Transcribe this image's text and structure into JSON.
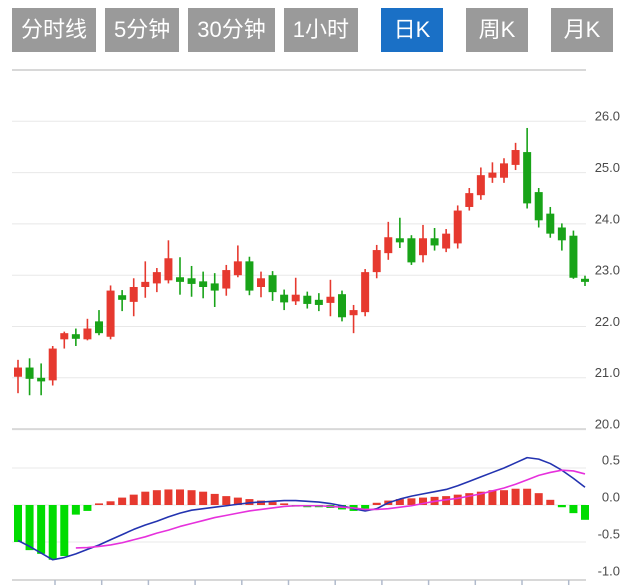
{
  "toolbar": {
    "buttons": [
      {
        "label": "分时线",
        "active": false
      },
      {
        "label": "5分钟",
        "active": false
      },
      {
        "label": "30分钟",
        "active": false
      },
      {
        "label": "1小时",
        "active": false
      },
      {
        "label": "日K",
        "active": true
      },
      {
        "label": "周K",
        "active": false
      },
      {
        "label": "月K",
        "active": false
      }
    ]
  },
  "colors": {
    "button_gray": "#9a9a9a",
    "button_active_blue": "#1a70c6",
    "up_red": "#e6392f",
    "down_green": "#18a318",
    "hist_green": "#00dc00",
    "dif_blue": "#2333b0",
    "dea_magenta": "#e631dc",
    "grid_light": "#e8e8e8",
    "grid_dark": "#d8d8d8",
    "axis_line": "#cccccc",
    "tick": "#b0bacc",
    "label_text": "#4a4a4a"
  },
  "chart_data": {
    "type": "candlestick",
    "color_convention": "red = up, green = down (Chinese market style)",
    "candle_format": "[open, high, low, close]",
    "price_panel": {
      "ylim": [
        20.0,
        27.0
      ],
      "grid_step": 1.0,
      "axis_labels": [
        "26.0",
        "25.0",
        "24.0",
        "23.0",
        "22.0",
        "21.0",
        "20.0"
      ],
      "candles": [
        [
          21.02,
          21.35,
          20.7,
          21.2
        ],
        [
          21.2,
          21.38,
          20.66,
          20.98
        ],
        [
          21.0,
          21.28,
          20.66,
          20.93
        ],
        [
          20.95,
          21.62,
          20.85,
          21.57
        ],
        [
          21.75,
          21.9,
          21.57,
          21.87
        ],
        [
          21.85,
          21.96,
          21.62,
          21.76
        ],
        [
          21.75,
          22.15,
          21.73,
          21.96
        ],
        [
          22.1,
          22.32,
          21.83,
          21.87
        ],
        [
          21.8,
          22.8,
          21.75,
          22.7
        ],
        [
          22.61,
          22.71,
          22.3,
          22.52
        ],
        [
          22.48,
          22.94,
          22.2,
          22.77
        ],
        [
          22.77,
          23.27,
          22.56,
          22.87
        ],
        [
          22.84,
          23.14,
          22.67,
          23.06
        ],
        [
          22.9,
          23.68,
          22.84,
          23.33
        ],
        [
          22.96,
          23.35,
          22.62,
          22.87
        ],
        [
          22.94,
          23.18,
          22.58,
          22.83
        ],
        [
          22.88,
          23.07,
          22.55,
          22.77
        ],
        [
          22.84,
          23.04,
          22.38,
          22.7
        ],
        [
          22.74,
          23.2,
          22.6,
          23.1
        ],
        [
          23.0,
          23.58,
          22.96,
          23.27
        ],
        [
          23.27,
          23.36,
          22.61,
          22.7
        ],
        [
          22.77,
          23.07,
          22.57,
          22.94
        ],
        [
          23.0,
          23.08,
          22.5,
          22.67
        ],
        [
          22.62,
          22.72,
          22.32,
          22.47
        ],
        [
          22.49,
          22.95,
          22.42,
          22.62
        ],
        [
          22.6,
          22.68,
          22.35,
          22.44
        ],
        [
          22.52,
          22.65,
          22.3,
          22.42
        ],
        [
          22.46,
          22.91,
          22.2,
          22.58
        ],
        [
          22.63,
          22.7,
          22.1,
          22.18
        ],
        [
          22.22,
          22.42,
          21.87,
          22.32
        ],
        [
          22.28,
          23.12,
          22.2,
          23.06
        ],
        [
          23.06,
          23.59,
          22.94,
          23.49
        ],
        [
          23.43,
          24.04,
          23.3,
          23.74
        ],
        [
          23.72,
          24.12,
          23.53,
          23.64
        ],
        [
          23.72,
          23.78,
          23.2,
          23.25
        ],
        [
          23.39,
          23.98,
          23.25,
          23.72
        ],
        [
          23.72,
          23.92,
          23.48,
          23.58
        ],
        [
          23.52,
          23.9,
          23.45,
          23.81
        ],
        [
          23.62,
          24.36,
          23.52,
          24.26
        ],
        [
          24.33,
          24.7,
          24.26,
          24.6
        ],
        [
          24.56,
          25.1,
          24.47,
          24.95
        ],
        [
          24.9,
          25.2,
          24.8,
          25.0
        ],
        [
          24.9,
          25.28,
          24.8,
          25.18
        ],
        [
          25.15,
          25.58,
          25.05,
          25.44
        ],
        [
          25.4,
          25.87,
          24.3,
          24.4
        ],
        [
          24.62,
          24.7,
          23.93,
          24.07
        ],
        [
          24.2,
          24.33,
          23.73,
          23.81
        ],
        [
          23.93,
          24.01,
          23.48,
          23.68
        ],
        [
          23.77,
          23.87,
          22.93,
          22.95
        ],
        [
          22.93,
          22.99,
          22.79,
          22.87
        ]
      ]
    },
    "macd_panel": {
      "axis_labels": [
        "0.5",
        "0.0",
        "-0.5",
        "-1.0"
      ],
      "grid_values": [
        0.5,
        0.0,
        -0.5,
        -1.0
      ],
      "histogram": [
        -0.5,
        -0.61,
        -0.66,
        -0.74,
        -0.69,
        -0.13,
        -0.08,
        0.02,
        0.05,
        0.1,
        0.14,
        0.18,
        0.2,
        0.21,
        0.21,
        0.2,
        0.18,
        0.15,
        0.12,
        0.1,
        0.08,
        0.06,
        0.04,
        0.02,
        -0.02,
        -0.03,
        -0.03,
        -0.04,
        -0.06,
        -0.08,
        -0.05,
        0.03,
        0.06,
        0.08,
        0.09,
        0.1,
        0.11,
        0.12,
        0.14,
        0.16,
        0.18,
        0.2,
        0.2,
        0.22,
        0.22,
        0.16,
        0.07,
        -0.03,
        -0.11,
        -0.2
      ],
      "dif_line": [
        -0.48,
        -0.56,
        -0.65,
        -0.74,
        -0.71,
        -0.66,
        -0.6,
        -0.54,
        -0.47,
        -0.4,
        -0.33,
        -0.27,
        -0.22,
        -0.16,
        -0.11,
        -0.07,
        -0.05,
        -0.03,
        -0.01,
        0.01,
        0.03,
        0.04,
        0.05,
        0.06,
        0.06,
        0.05,
        0.04,
        0.02,
        -0.01,
        -0.05,
        -0.08,
        -0.05,
        0.03,
        0.08,
        0.12,
        0.15,
        0.18,
        0.21,
        0.26,
        0.32,
        0.38,
        0.44,
        0.5,
        0.57,
        0.64,
        0.62,
        0.56,
        0.47,
        0.36,
        0.24
      ],
      "dea_line": [
        null,
        null,
        null,
        null,
        null,
        -0.58,
        -0.575,
        -0.56,
        -0.54,
        -0.51,
        -0.47,
        -0.43,
        -0.38,
        -0.34,
        -0.29,
        -0.25,
        -0.21,
        -0.17,
        -0.14,
        -0.11,
        -0.08,
        -0.06,
        -0.04,
        -0.02,
        -0.01,
        -0.01,
        -0.01,
        -0.02,
        -0.03,
        -0.04,
        -0.06,
        -0.06,
        -0.05,
        -0.03,
        -0.01,
        0.02,
        0.05,
        0.07,
        0.09,
        0.12,
        0.15,
        0.19,
        0.23,
        0.28,
        0.34,
        0.4,
        0.44,
        0.47,
        0.46,
        0.42
      ]
    }
  }
}
